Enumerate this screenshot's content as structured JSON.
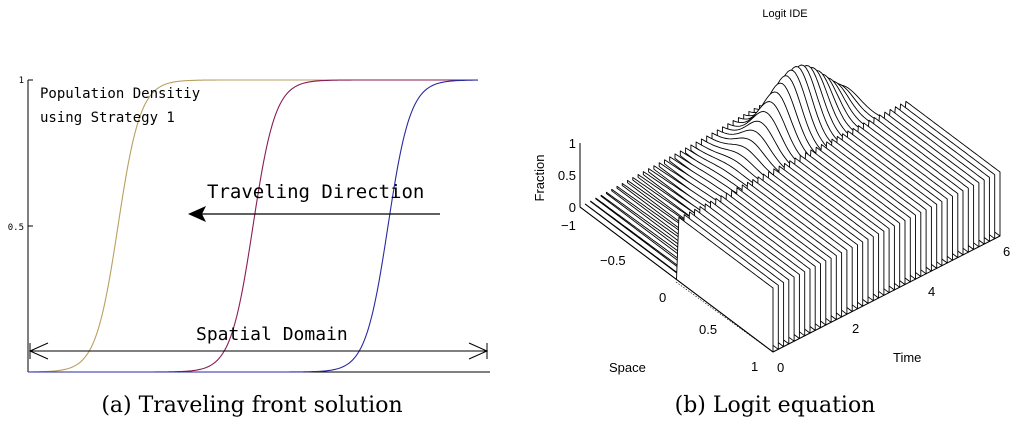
{
  "chart_data": [
    {
      "id": "a",
      "type": "line",
      "caption": "(a) Traveling front solution",
      "title": "",
      "xlabel": "",
      "ylabel": "",
      "ylim": [
        0,
        1
      ],
      "xlim": [
        0,
        1
      ],
      "y_ticks": [
        {
          "value": 0.5,
          "label": "0.5"
        },
        {
          "value": 1,
          "label": "1"
        }
      ],
      "annotations": {
        "legend_line1": "Population Densitiy",
        "legend_line2": "using Strategy 1",
        "direction": "Traveling Direction",
        "domain": "Spatial Domain"
      },
      "series": [
        {
          "midpoint": 0.2,
          "steepness": 40,
          "color": "#b8a060"
        },
        {
          "midpoint": 0.5,
          "steepness": 40,
          "color": "#8a1d56"
        },
        {
          "midpoint": 0.8,
          "steepness": 40,
          "color": "#2a2aa0"
        }
      ]
    },
    {
      "id": "b",
      "type": "area",
      "caption": "(b) Logit equation",
      "title": "Logit IDE",
      "xlabel": "Space",
      "ylabel": "Time",
      "zlabel": "Fraction",
      "x_ticks": [
        "−1",
        "−0.5",
        "0",
        "0.5",
        "1"
      ],
      "y_ticks": [
        "0",
        "2",
        "4",
        "6"
      ],
      "z_ticks": [
        "0",
        "0.5",
        "1"
      ],
      "xlim": [
        -1,
        1
      ],
      "ylim": [
        0,
        6
      ],
      "zlim": [
        0,
        1
      ],
      "slices": 44
    }
  ]
}
